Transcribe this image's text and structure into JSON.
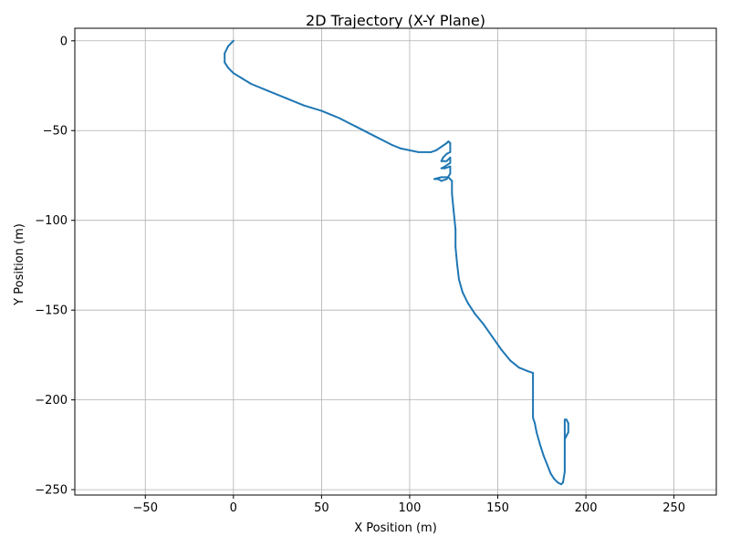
{
  "chart_data": {
    "type": "line",
    "title": "2D Trajectory (X-Y Plane)",
    "xlabel": "X Position (m)",
    "ylabel": "Y Position (m)",
    "xlim": [
      -90,
      274
    ],
    "ylim": [
      -253,
      7
    ],
    "xticks": [
      -50,
      0,
      50,
      100,
      150,
      200,
      250
    ],
    "yticks": [
      0,
      -50,
      -100,
      -150,
      -200,
      -250
    ],
    "grid": true,
    "series": [
      {
        "color": "#1f77b4",
        "x": [
          0,
          -3,
          -5,
          -5,
          -3,
          0,
          5,
          10,
          20,
          30,
          40,
          50,
          60,
          70,
          80,
          90,
          95,
          100,
          105,
          112,
          115,
          118,
          121,
          122,
          123,
          123,
          121,
          119,
          118,
          121,
          123,
          123,
          120,
          118,
          120,
          123,
          123,
          121,
          118,
          116,
          114,
          118,
          122,
          124,
          124,
          125,
          126,
          126,
          127,
          128,
          130,
          133,
          137,
          142,
          147,
          152,
          157,
          162,
          167,
          170,
          170,
          170,
          170,
          170,
          171,
          172,
          174,
          176,
          178,
          180,
          182,
          184,
          186,
          187,
          188,
          188,
          188,
          188,
          188,
          188,
          189,
          190,
          190,
          189,
          188
        ],
        "y": [
          0,
          -3,
          -7,
          -12,
          -15,
          -18,
          -21,
          -24,
          -28,
          -32,
          -36,
          -39,
          -43,
          -48,
          -53,
          -58,
          -60,
          -61,
          -62,
          -62,
          -61,
          -59,
          -57,
          -56,
          -57,
          -62,
          -63,
          -65,
          -67,
          -67,
          -65,
          -68,
          -70,
          -71,
          -71,
          -70,
          -74,
          -77,
          -78,
          -77,
          -77,
          -76,
          -76,
          -78,
          -85,
          -95,
          -105,
          -115,
          -125,
          -133,
          -140,
          -146,
          -152,
          -158,
          -165,
          -172,
          -178,
          -182,
          -184,
          -185,
          -190,
          -200,
          -205,
          -210,
          -213,
          -218,
          -225,
          -231,
          -236,
          -241,
          -244,
          -246,
          -247,
          -246,
          -240,
          -233,
          -226,
          -219,
          -214,
          -211,
          -211,
          -213,
          -218,
          -220,
          -222
        ]
      }
    ]
  }
}
